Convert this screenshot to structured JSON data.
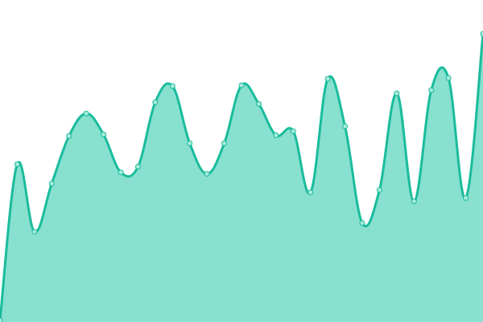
{
  "chart_data": {
    "type": "area",
    "title": "",
    "xlabel": "",
    "ylabel": "",
    "x": [
      0,
      1,
      2,
      3,
      4,
      5,
      6,
      7,
      8,
      9,
      10,
      11,
      12,
      13,
      14,
      15,
      16,
      17,
      18,
      19,
      20,
      21,
      22,
      23,
      24,
      25,
      26,
      27,
      28
    ],
    "values": [
      2,
      196,
      112,
      172,
      231,
      259,
      233,
      186,
      193,
      273,
      293,
      222,
      184,
      222,
      294,
      271,
      232,
      237,
      161,
      302,
      243,
      123,
      164,
      284,
      150,
      288,
      303,
      154,
      358
    ],
    "ylim": [
      0,
      400
    ],
    "grid": false,
    "legend": "none",
    "smooth": true,
    "colors": {
      "line": "#1abc9c",
      "fill": "#88e0cf",
      "point_fill": "#a8eadb"
    }
  }
}
